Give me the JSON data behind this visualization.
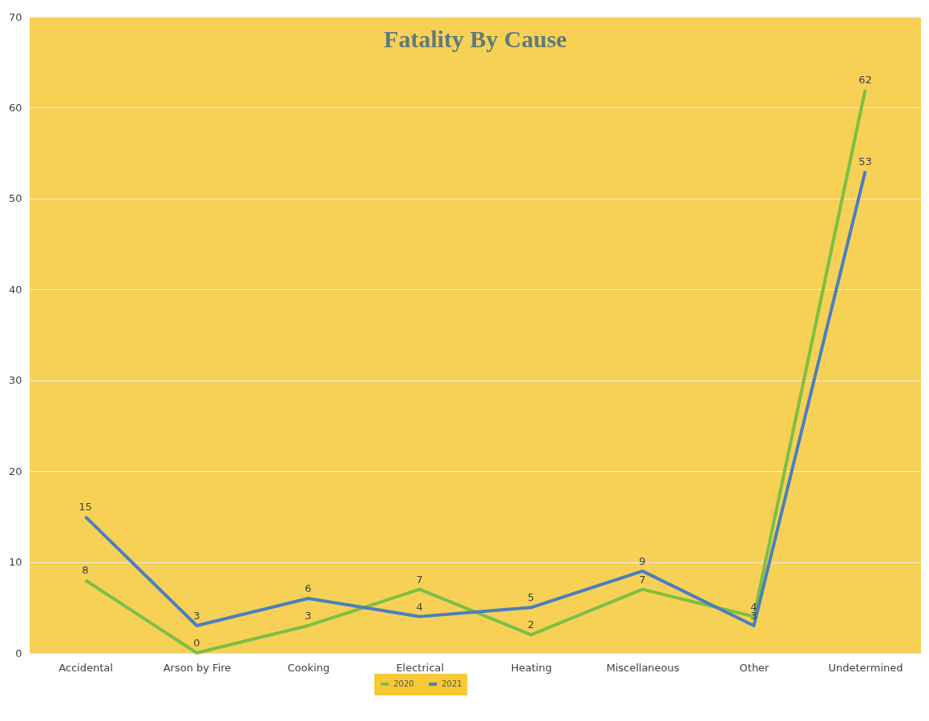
{
  "chart_data": {
    "type": "line",
    "title": "Fatality By Cause",
    "categories": [
      "Accidental",
      "Arson by Fire",
      "Cooking",
      "Electrical",
      "Heating",
      "Miscellaneous",
      "Other",
      "Undetermined"
    ],
    "series": [
      {
        "name": "2020",
        "color": "#7cbf45",
        "values": [
          8,
          0,
          3,
          7,
          2,
          7,
          4,
          62
        ]
      },
      {
        "name": "2021",
        "color": "#4a7ec0",
        "values": [
          15,
          3,
          6,
          4,
          5,
          9,
          3,
          53
        ]
      }
    ],
    "ylim": [
      0,
      70
    ],
    "yticks": [
      0,
      10,
      20,
      30,
      40,
      50,
      60,
      70
    ],
    "grid": "y",
    "legend": "bottom",
    "data_labels": true,
    "marker": "none",
    "line_style": "solid"
  }
}
